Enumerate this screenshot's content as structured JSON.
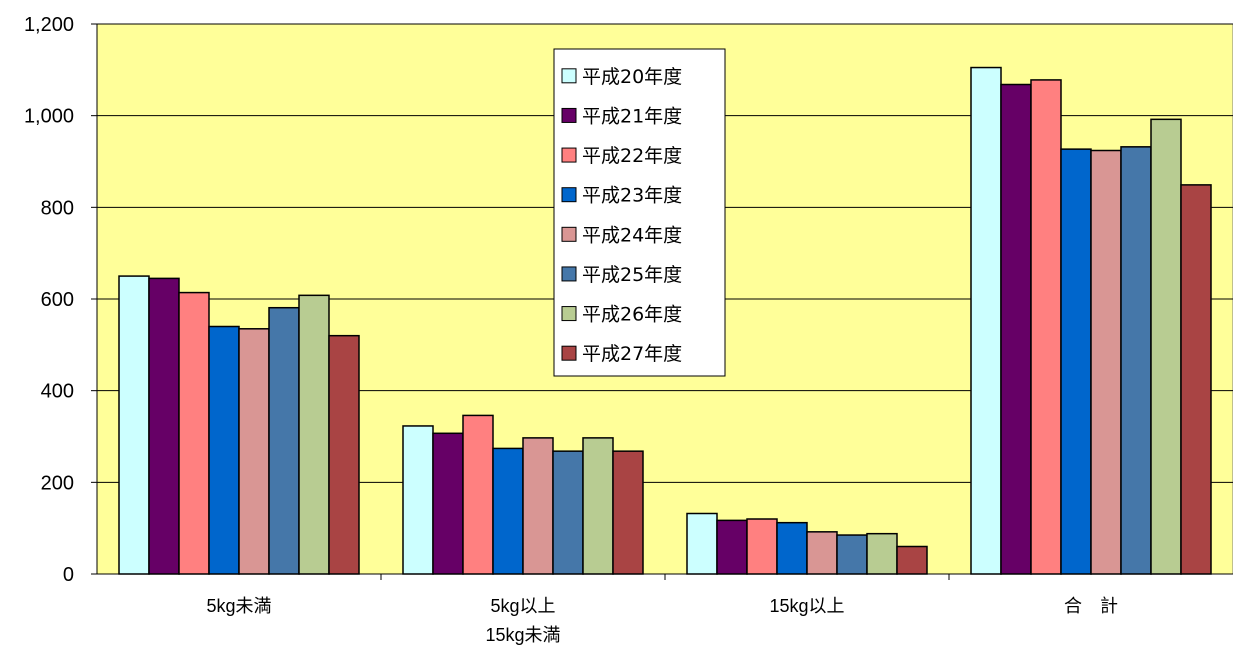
{
  "chart_data": {
    "type": "bar",
    "title": "",
    "xlabel": "",
    "ylabel": "",
    "ylim": [
      0,
      1200
    ],
    "y_ticks": [
      "0",
      "200",
      "400",
      "600",
      "800",
      "1,000",
      "1,200"
    ],
    "y_tick_values": [
      0,
      200,
      400,
      600,
      800,
      1000,
      1200
    ],
    "grid": true,
    "plot_background": "#ffff99",
    "legend_position": "top-center",
    "categories": [
      {
        "lines": [
          "5kg未満"
        ]
      },
      {
        "lines": [
          "5kg以上",
          "15kg未満"
        ]
      },
      {
        "lines": [
          "15kg以上"
        ]
      },
      {
        "lines": [
          "合　計"
        ]
      }
    ],
    "series": [
      {
        "name": "平成20年度",
        "color": "#ccffff",
        "values": [
          650,
          323,
          132,
          1105
        ]
      },
      {
        "name": "平成21年度",
        "color": "#660066",
        "values": [
          645,
          307,
          117,
          1068
        ]
      },
      {
        "name": "平成22年度",
        "color": "#ff8080",
        "values": [
          614,
          346,
          120,
          1078
        ]
      },
      {
        "name": "平成23年度",
        "color": "#0066cc",
        "values": [
          540,
          274,
          112,
          927
        ]
      },
      {
        "name": "平成24年度",
        "color": "#d99694",
        "values": [
          535,
          297,
          92,
          924
        ]
      },
      {
        "name": "平成25年度",
        "color": "#4577a9",
        "values": [
          581,
          268,
          85,
          932
        ]
      },
      {
        "name": "平成26年度",
        "color": "#b8cc92",
        "values": [
          608,
          297,
          88,
          992
        ]
      },
      {
        "name": "平成27年度",
        "color": "#a94444",
        "values": [
          520,
          268,
          60,
          849
        ]
      }
    ]
  }
}
